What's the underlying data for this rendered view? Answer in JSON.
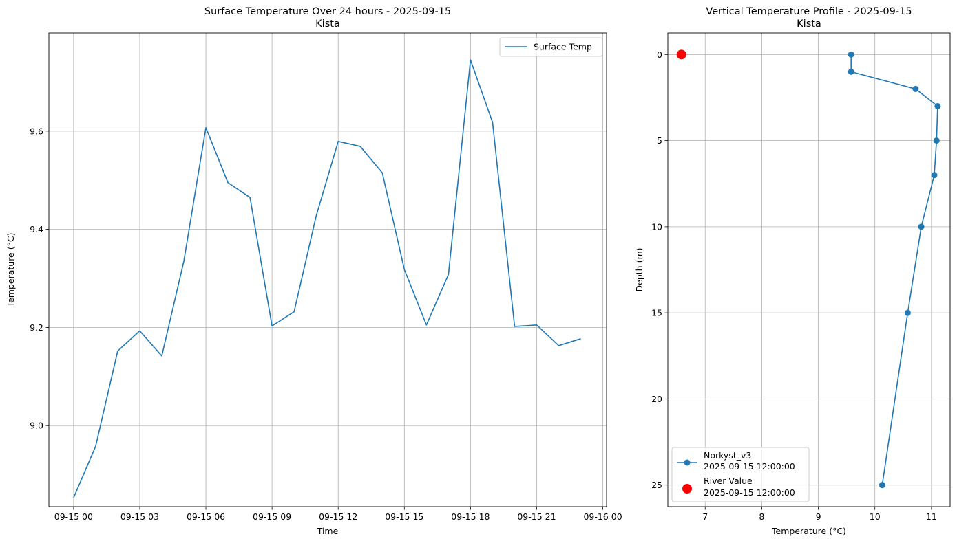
{
  "chart_data": [
    {
      "type": "line",
      "title": "Surface Temperature Over 24 hours - 2025-09-15",
      "subtitle": "Kista",
      "xlabel": "Time",
      "ylabel": "Temperature (°C)",
      "xlim": [
        -1.12,
        24.17
      ],
      "ylim": [
        8.835,
        9.8
      ],
      "x_ticks": [
        {
          "value": 0,
          "label": "09-15 00"
        },
        {
          "value": 3,
          "label": "09-15 03"
        },
        {
          "value": 6,
          "label": "09-15 06"
        },
        {
          "value": 9,
          "label": "09-15 09"
        },
        {
          "value": 12,
          "label": "09-15 12"
        },
        {
          "value": 15,
          "label": "09-15 15"
        },
        {
          "value": 18,
          "label": "09-15 18"
        },
        {
          "value": 21,
          "label": "09-15 21"
        },
        {
          "value": 24,
          "label": "09-16 00"
        }
      ],
      "y_ticks": [
        {
          "value": 9.0,
          "label": "9.0"
        },
        {
          "value": 9.2,
          "label": "9.2"
        },
        {
          "value": 9.4,
          "label": "9.4"
        },
        {
          "value": 9.6,
          "label": "9.6"
        }
      ],
      "grid": true,
      "legend_position": "upper right",
      "series": [
        {
          "name": "Surface Temp",
          "color": "#1f77b4",
          "x": [
            0,
            1,
            2,
            3,
            4,
            5,
            6,
            7,
            8,
            9,
            10,
            11,
            12,
            13,
            14,
            15,
            16,
            17,
            18,
            19,
            20,
            21,
            22,
            23
          ],
          "y": [
            8.853,
            8.958,
            9.152,
            9.193,
            9.142,
            9.335,
            9.607,
            9.495,
            9.465,
            9.203,
            9.232,
            9.427,
            9.579,
            9.569,
            9.515,
            9.318,
            9.205,
            9.308,
            9.745,
            9.618,
            9.202,
            9.205,
            9.163,
            9.177
          ]
        }
      ]
    },
    {
      "type": "line",
      "title": "Vertical Temperature Profile - 2025-09-15",
      "subtitle": "Kista",
      "xlabel": "Temperature (°C)",
      "ylabel": "Depth (m)",
      "xlim": [
        6.34,
        11.33
      ],
      "ylim": [
        26.25,
        -1.25
      ],
      "y_inverted": true,
      "x_ticks": [
        {
          "value": 7,
          "label": "7"
        },
        {
          "value": 8,
          "label": "8"
        },
        {
          "value": 9,
          "label": "9"
        },
        {
          "value": 10,
          "label": "10"
        },
        {
          "value": 11,
          "label": "11"
        }
      ],
      "y_ticks": [
        {
          "value": 0,
          "label": "0"
        },
        {
          "value": 5,
          "label": "5"
        },
        {
          "value": 10,
          "label": "10"
        },
        {
          "value": 15,
          "label": "15"
        },
        {
          "value": 20,
          "label": "20"
        },
        {
          "value": 25,
          "label": "25"
        }
      ],
      "grid": true,
      "legend_position": "lower left",
      "series": [
        {
          "name": "Norkyst_v3",
          "name_line2": "2025-09-15 12:00:00",
          "color": "#1f77b4",
          "marker": "circle",
          "temperature": [
            9.58,
            9.58,
            10.72,
            11.11,
            11.09,
            11.05,
            10.82,
            10.58,
            10.13
          ],
          "depth": [
            0,
            1,
            2,
            3,
            5,
            7,
            10,
            15,
            25
          ]
        },
        {
          "name": "River Value",
          "name_line2": "2025-09-15 12:00:00",
          "color": "#ff0000",
          "marker": "circle-large",
          "temperature": [
            6.58
          ],
          "depth": [
            0
          ]
        }
      ]
    }
  ]
}
